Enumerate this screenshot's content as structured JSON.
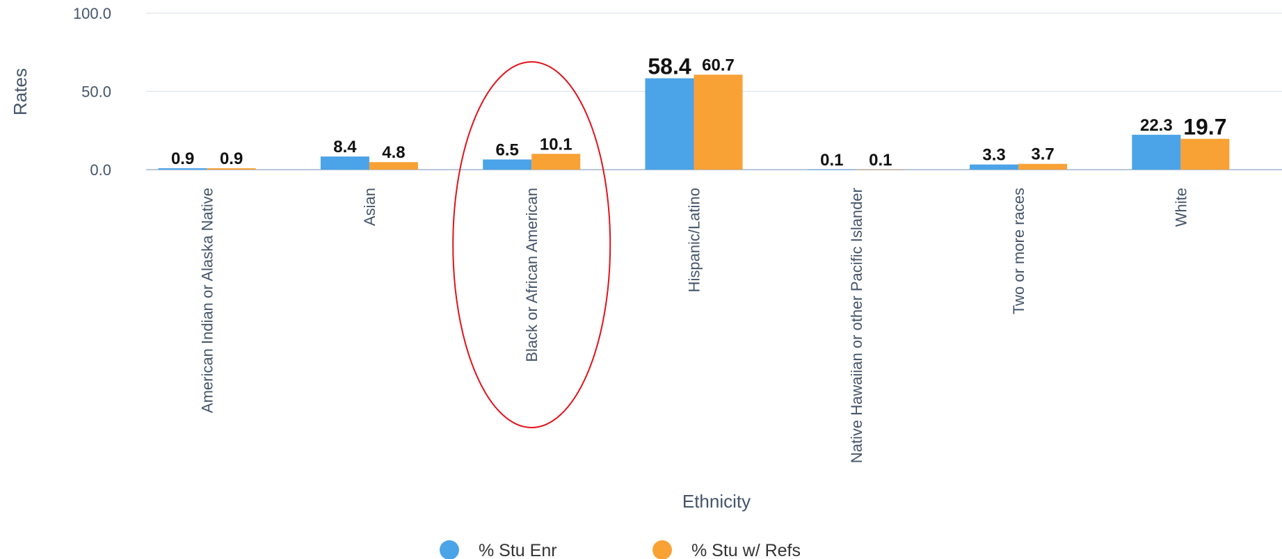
{
  "chart_data": {
    "type": "bar",
    "xlabel": "Ethnicity",
    "ylabel": "Rates",
    "ylim": [
      0,
      100
    ],
    "yticks": [
      "0.0",
      "50.0",
      "100.0"
    ],
    "grid": true,
    "legend_position": "bottom-center",
    "categories": [
      "American Indian or Alaska Native",
      "Asian",
      "Black or African American",
      "Hispanic/Latino",
      "Native Hawaiian or other Pacific Islander",
      "Two or more races",
      "White"
    ],
    "series": [
      {
        "name": "% Stu Enr",
        "color": "#4ba3e8",
        "values": [
          0.9,
          8.4,
          6.5,
          58.4,
          0.1,
          3.3,
          22.3
        ]
      },
      {
        "name": "% Stu w/ Refs",
        "color": "#f8a135",
        "values": [
          0.9,
          4.8,
          10.1,
          60.7,
          0.1,
          3.7,
          19.7
        ]
      }
    ],
    "data_labels": [
      [
        "0.9",
        "8.4",
        "6.5",
        "58.4",
        "0.1",
        "3.3",
        "22.3"
      ],
      [
        "0.9",
        "4.8",
        "10.1",
        "60.7",
        "0.1",
        "3.7",
        "19.7"
      ]
    ],
    "annotation": {
      "type": "ellipse",
      "color": "#e0121b",
      "category": "Black or African American"
    }
  }
}
